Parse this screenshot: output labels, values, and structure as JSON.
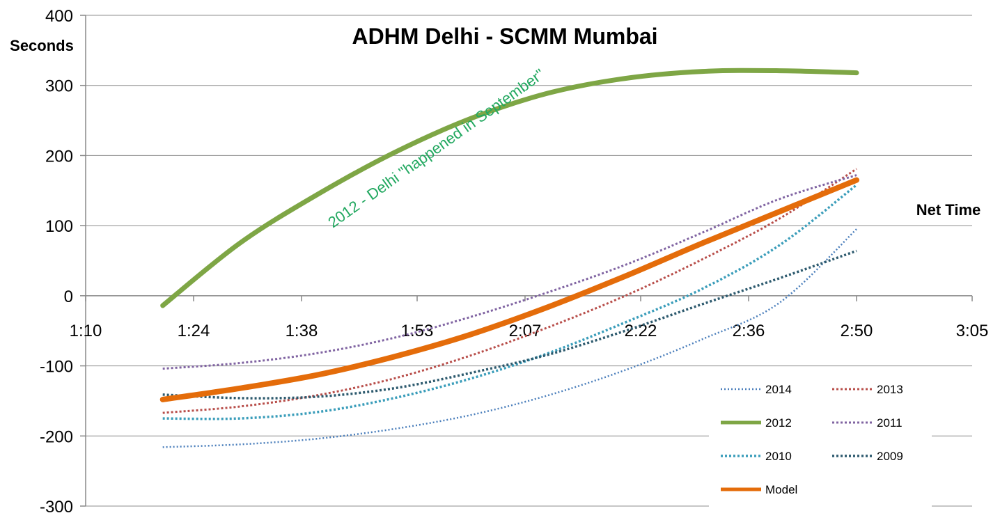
{
  "chart_data": {
    "type": "line",
    "title": "ADHM Delhi - SCMM Mumbai",
    "xlabel": "Net Time",
    "ylabel": "Seconds",
    "ylim": [
      -300,
      400
    ],
    "y_ticks": [
      400,
      300,
      200,
      100,
      0,
      -100,
      -200,
      -300
    ],
    "y_tick_labels": [
      "400",
      "300",
      "200",
      "100",
      "0",
      "-100",
      "-200",
      "-300"
    ],
    "xlim_minutes": [
      70,
      185
    ],
    "x_ticks_minutes": [
      70,
      84,
      98,
      113,
      127,
      142,
      156,
      170,
      185
    ],
    "x_tick_labels": [
      "1:10",
      "1:24",
      "1:38",
      "1:53",
      "2:07",
      "2:22",
      "2:36",
      "2:50",
      "3:05"
    ],
    "grid": "horizontal",
    "annotation": "2012 - Delhi \"happened in September\"",
    "series": [
      {
        "name": "2014",
        "color": "#4a7ebb",
        "style": "dotted",
        "width": 2.5,
        "x": [
          80,
          90,
          100,
          110,
          120,
          130,
          140,
          150,
          160,
          170
        ],
        "values": [
          -216,
          -212,
          -204,
          -190,
          -170,
          -142,
          -106,
          -62,
          -10,
          95
        ]
      },
      {
        "name": "2013",
        "color": "#b84e4a",
        "style": "dotted",
        "width": 3,
        "x": [
          80,
          90,
          100,
          110,
          120,
          130,
          140,
          150,
          160,
          170
        ],
        "values": [
          -167,
          -158,
          -142,
          -118,
          -85,
          -45,
          0,
          52,
          110,
          181
        ]
      },
      {
        "name": "2012",
        "color": "#7ea645",
        "style": "solid",
        "width": 7,
        "x": [
          80,
          90,
          100,
          110,
          120,
          130,
          140,
          150,
          160,
          170
        ],
        "values": [
          -14,
          75,
          144,
          204,
          253,
          289,
          310,
          320,
          321,
          318
        ]
      },
      {
        "name": "2011",
        "color": "#8064a2",
        "style": "dotted",
        "width": 3,
        "x": [
          80,
          90,
          100,
          110,
          120,
          130,
          140,
          150,
          160,
          170
        ],
        "values": [
          -104,
          -96,
          -82,
          -60,
          -30,
          5,
          44,
          90,
          138,
          172
        ]
      },
      {
        "name": "2010",
        "color": "#3a9dba",
        "style": "dotted",
        "width": 3.5,
        "x": [
          80,
          90,
          100,
          110,
          120,
          130,
          140,
          150,
          160,
          170
        ],
        "values": [
          -175,
          -175,
          -166,
          -146,
          -118,
          -82,
          -38,
          10,
          72,
          158
        ]
      },
      {
        "name": "2009",
        "color": "#2d5a6e",
        "style": "dotted",
        "width": 3.5,
        "x": [
          80,
          90,
          100,
          110,
          120,
          130,
          140,
          150,
          160,
          170
        ],
        "values": [
          -141,
          -146,
          -144,
          -132,
          -110,
          -84,
          -50,
          -12,
          25,
          64
        ]
      },
      {
        "name": "Model",
        "color": "#e46c0a",
        "style": "solid",
        "width": 8,
        "x": [
          80,
          90,
          100,
          110,
          120,
          130,
          140,
          150,
          160,
          170
        ],
        "values": [
          -148,
          -132,
          -113,
          -87,
          -55,
          -16,
          28,
          75,
          120,
          165
        ]
      }
    ]
  }
}
